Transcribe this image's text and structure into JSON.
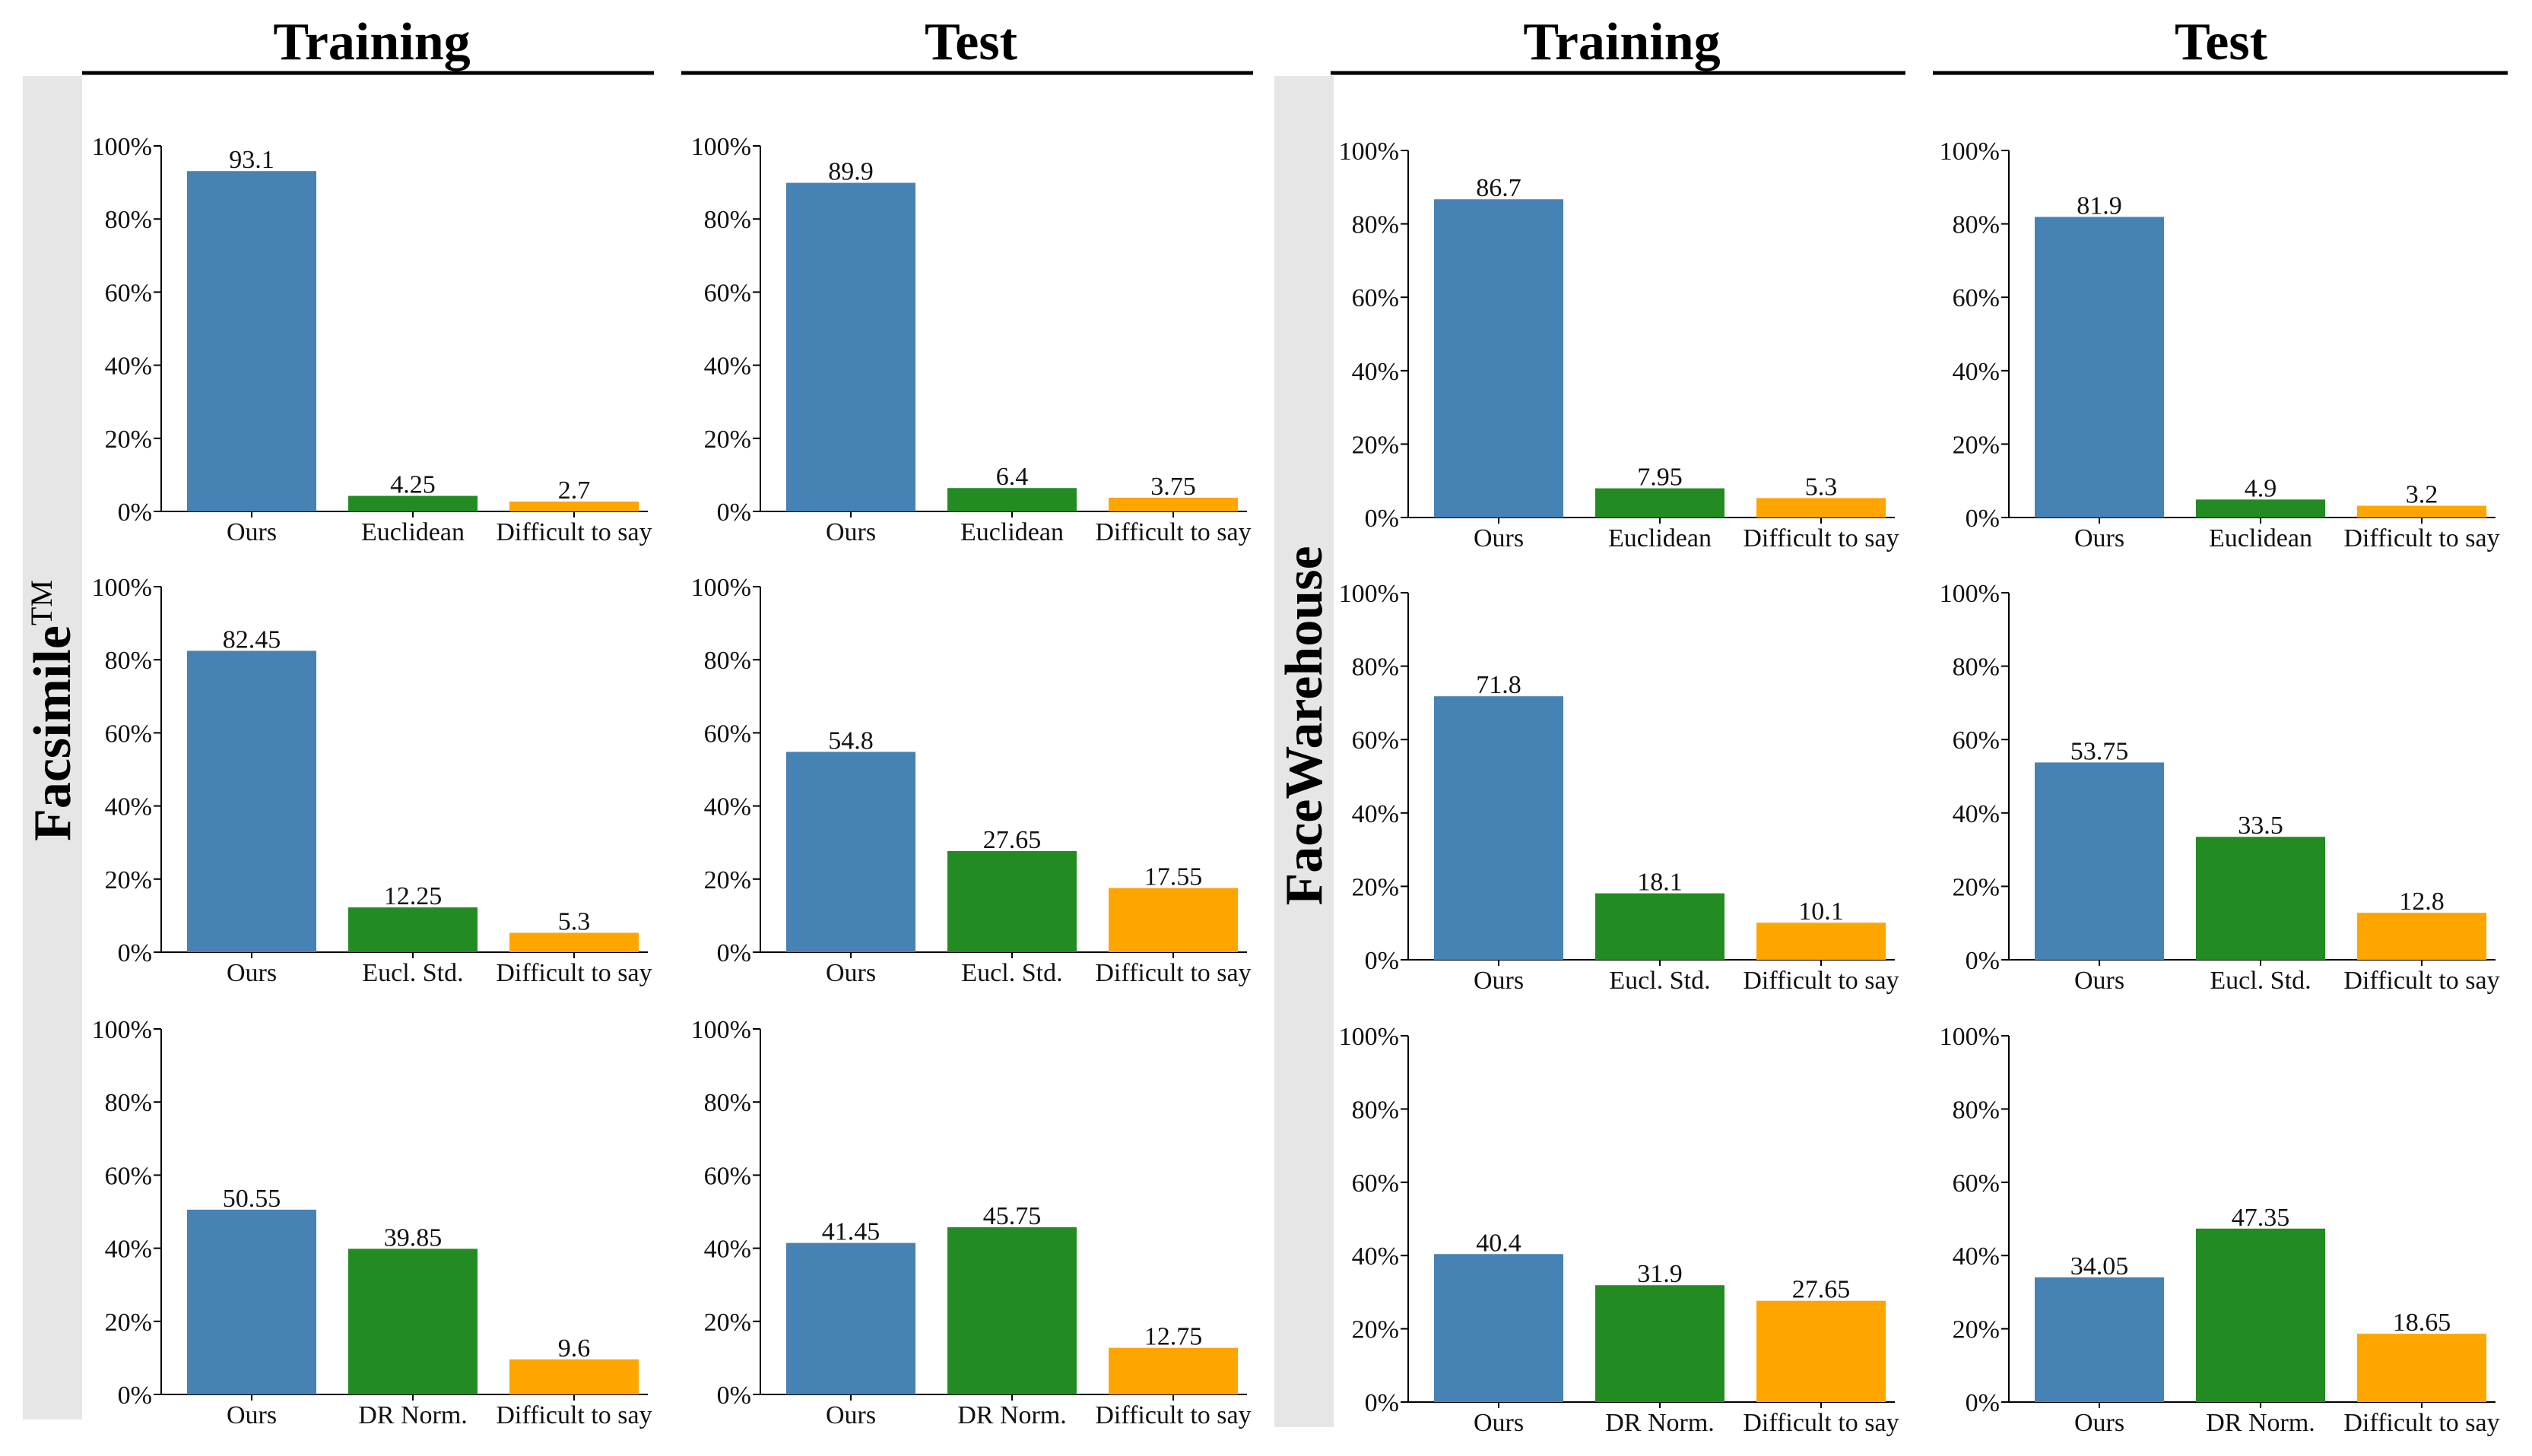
{
  "figure": {
    "column_headers": [
      "Training",
      "Test",
      "Training",
      "Test"
    ],
    "dataset_labels": [
      {
        "name": "Facsimile",
        "superscript": "TM"
      },
      {
        "name": "FaceWarehouse",
        "superscript": ""
      }
    ],
    "colors": {
      "ours": "#4682b4",
      "baseline": "#228b22",
      "difficult": "#ffa500",
      "band": "#e6e6e6",
      "axis": "#000000",
      "text": "#111111"
    }
  },
  "chart_data": [
    {
      "type": "bar",
      "dataset": "Facsimile",
      "split": "Training",
      "row": 1,
      "categories": [
        "Ours",
        "Euclidean",
        "Difficult to say"
      ],
      "values": [
        93.1,
        4.25,
        2.7
      ],
      "value_labels": [
        "93.1",
        "4.25",
        "2.7"
      ],
      "yticks": [
        "0%",
        "20%",
        "40%",
        "60%",
        "80%",
        "100%"
      ],
      "ylim": [
        0,
        100
      ]
    },
    {
      "type": "bar",
      "dataset": "Facsimile",
      "split": "Test",
      "row": 1,
      "categories": [
        "Ours",
        "Euclidean",
        "Difficult to say"
      ],
      "values": [
        89.9,
        6.4,
        3.75
      ],
      "value_labels": [
        "89.9",
        "6.4",
        "3.75"
      ],
      "yticks": [
        "0%",
        "20%",
        "40%",
        "60%",
        "80%",
        "100%"
      ],
      "ylim": [
        0,
        100
      ]
    },
    {
      "type": "bar",
      "dataset": "FaceWarehouse",
      "split": "Training",
      "row": 1,
      "categories": [
        "Ours",
        "Euclidean",
        "Difficult to say"
      ],
      "values": [
        86.7,
        7.95,
        5.3
      ],
      "value_labels": [
        "86.7",
        "7.95",
        "5.3"
      ],
      "yticks": [
        "0%",
        "20%",
        "40%",
        "60%",
        "80%",
        "100%"
      ],
      "ylim": [
        0,
        100
      ]
    },
    {
      "type": "bar",
      "dataset": "FaceWarehouse",
      "split": "Test",
      "row": 1,
      "categories": [
        "Ours",
        "Euclidean",
        "Difficult to say"
      ],
      "values": [
        81.9,
        4.9,
        3.2
      ],
      "value_labels": [
        "81.9",
        "4.9",
        "3.2"
      ],
      "yticks": [
        "0%",
        "20%",
        "40%",
        "60%",
        "80%",
        "100%"
      ],
      "ylim": [
        0,
        100
      ]
    },
    {
      "type": "bar",
      "dataset": "Facsimile",
      "split": "Training",
      "row": 2,
      "categories": [
        "Ours",
        "Eucl. Std.",
        "Difficult to say"
      ],
      "values": [
        82.45,
        12.25,
        5.3
      ],
      "value_labels": [
        "82.45",
        "12.25",
        "5.3"
      ],
      "yticks": [
        "0%",
        "20%",
        "40%",
        "60%",
        "80%",
        "100%"
      ],
      "ylim": [
        0,
        100
      ]
    },
    {
      "type": "bar",
      "dataset": "Facsimile",
      "split": "Test",
      "row": 2,
      "categories": [
        "Ours",
        "Eucl. Std.",
        "Difficult to say"
      ],
      "values": [
        54.8,
        27.65,
        17.55
      ],
      "value_labels": [
        "54.8",
        "27.65",
        "17.55"
      ],
      "yticks": [
        "0%",
        "20%",
        "40%",
        "60%",
        "80%",
        "100%"
      ],
      "ylim": [
        0,
        100
      ]
    },
    {
      "type": "bar",
      "dataset": "FaceWarehouse",
      "split": "Training",
      "row": 2,
      "categories": [
        "Ours",
        "Eucl. Std.",
        "Difficult to say"
      ],
      "values": [
        71.8,
        18.1,
        10.1
      ],
      "value_labels": [
        "71.8",
        "18.1",
        "10.1"
      ],
      "yticks": [
        "0%",
        "20%",
        "40%",
        "60%",
        "80%",
        "100%"
      ],
      "ylim": [
        0,
        100
      ]
    },
    {
      "type": "bar",
      "dataset": "FaceWarehouse",
      "split": "Test",
      "row": 2,
      "categories": [
        "Ours",
        "Eucl. Std.",
        "Difficult to say"
      ],
      "values": [
        53.75,
        33.5,
        12.8
      ],
      "value_labels": [
        "53.75",
        "33.5",
        "12.8"
      ],
      "yticks": [
        "0%",
        "20%",
        "40%",
        "60%",
        "80%",
        "100%"
      ],
      "ylim": [
        0,
        100
      ]
    },
    {
      "type": "bar",
      "dataset": "Facsimile",
      "split": "Training",
      "row": 3,
      "categories": [
        "Ours",
        "DR Norm.",
        "Difficult to say"
      ],
      "values": [
        50.55,
        39.85,
        9.6
      ],
      "value_labels": [
        "50.55",
        "39.85",
        "9.6"
      ],
      "yticks": [
        "0%",
        "20%",
        "40%",
        "60%",
        "80%",
        "100%"
      ],
      "ylim": [
        0,
        100
      ]
    },
    {
      "type": "bar",
      "dataset": "Facsimile",
      "split": "Test",
      "row": 3,
      "categories": [
        "Ours",
        "DR Norm.",
        "Difficult to say"
      ],
      "values": [
        41.45,
        45.75,
        12.75
      ],
      "value_labels": [
        "41.45",
        "45.75",
        "12.75"
      ],
      "yticks": [
        "0%",
        "20%",
        "40%",
        "60%",
        "80%",
        "100%"
      ],
      "ylim": [
        0,
        100
      ]
    },
    {
      "type": "bar",
      "dataset": "FaceWarehouse",
      "split": "Training",
      "row": 3,
      "categories": [
        "Ours",
        "DR Norm.",
        "Difficult to say"
      ],
      "values": [
        40.4,
        31.9,
        27.65
      ],
      "value_labels": [
        "40.4",
        "31.9",
        "27.65"
      ],
      "yticks": [
        "0%",
        "20%",
        "40%",
        "60%",
        "80%",
        "100%"
      ],
      "ylim": [
        0,
        100
      ]
    },
    {
      "type": "bar",
      "dataset": "FaceWarehouse",
      "split": "Test",
      "row": 3,
      "categories": [
        "Ours",
        "DR Norm.",
        "Difficult to say"
      ],
      "values": [
        34.05,
        47.35,
        18.65
      ],
      "value_labels": [
        "34.05",
        "47.35",
        "18.65"
      ],
      "yticks": [
        "0%",
        "20%",
        "40%",
        "60%",
        "80%",
        "100%"
      ],
      "ylim": [
        0,
        100
      ]
    }
  ]
}
